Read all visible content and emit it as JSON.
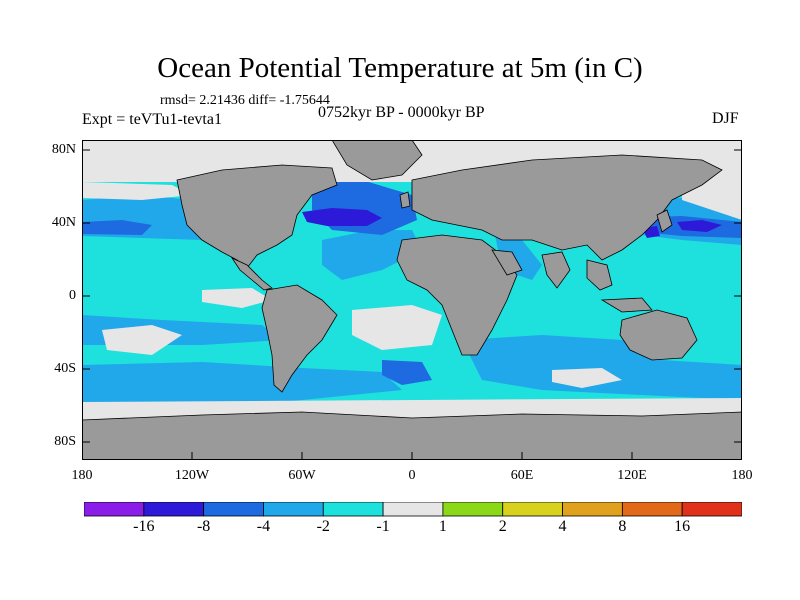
{
  "title": "Ocean Potential Temperature at 5m (in C)",
  "stats": "rmsd= 2.21436  diff= -1.75644",
  "experiment": "Expt = teVTu1-tevta1",
  "period": "0752kyr BP - 0000kyr BP",
  "season": "DJF",
  "lat_ticks": [
    "80N",
    "40N",
    "0",
    "40S",
    "80S"
  ],
  "lon_ticks": [
    "180",
    "120W",
    "60W",
    "0",
    "60E",
    "120E",
    "180"
  ],
  "colorbar": {
    "labels": [
      "-16",
      "-8",
      "-4",
      "-2",
      "-1",
      "1",
      "2",
      "4",
      "8",
      "16"
    ],
    "colors": [
      "#8a1ee8",
      "#2d1ad8",
      "#1e6ae0",
      "#20a8ea",
      "#1ee0dc",
      "#e6e6e6",
      "#8ad818",
      "#d8d21e",
      "#e0a21e",
      "#e2681a",
      "#e0321a"
    ]
  },
  "colors": {
    "land": "#9a9a9a",
    "ice": "#e6e6e6",
    "ocean_base": "#20c8e0"
  }
}
